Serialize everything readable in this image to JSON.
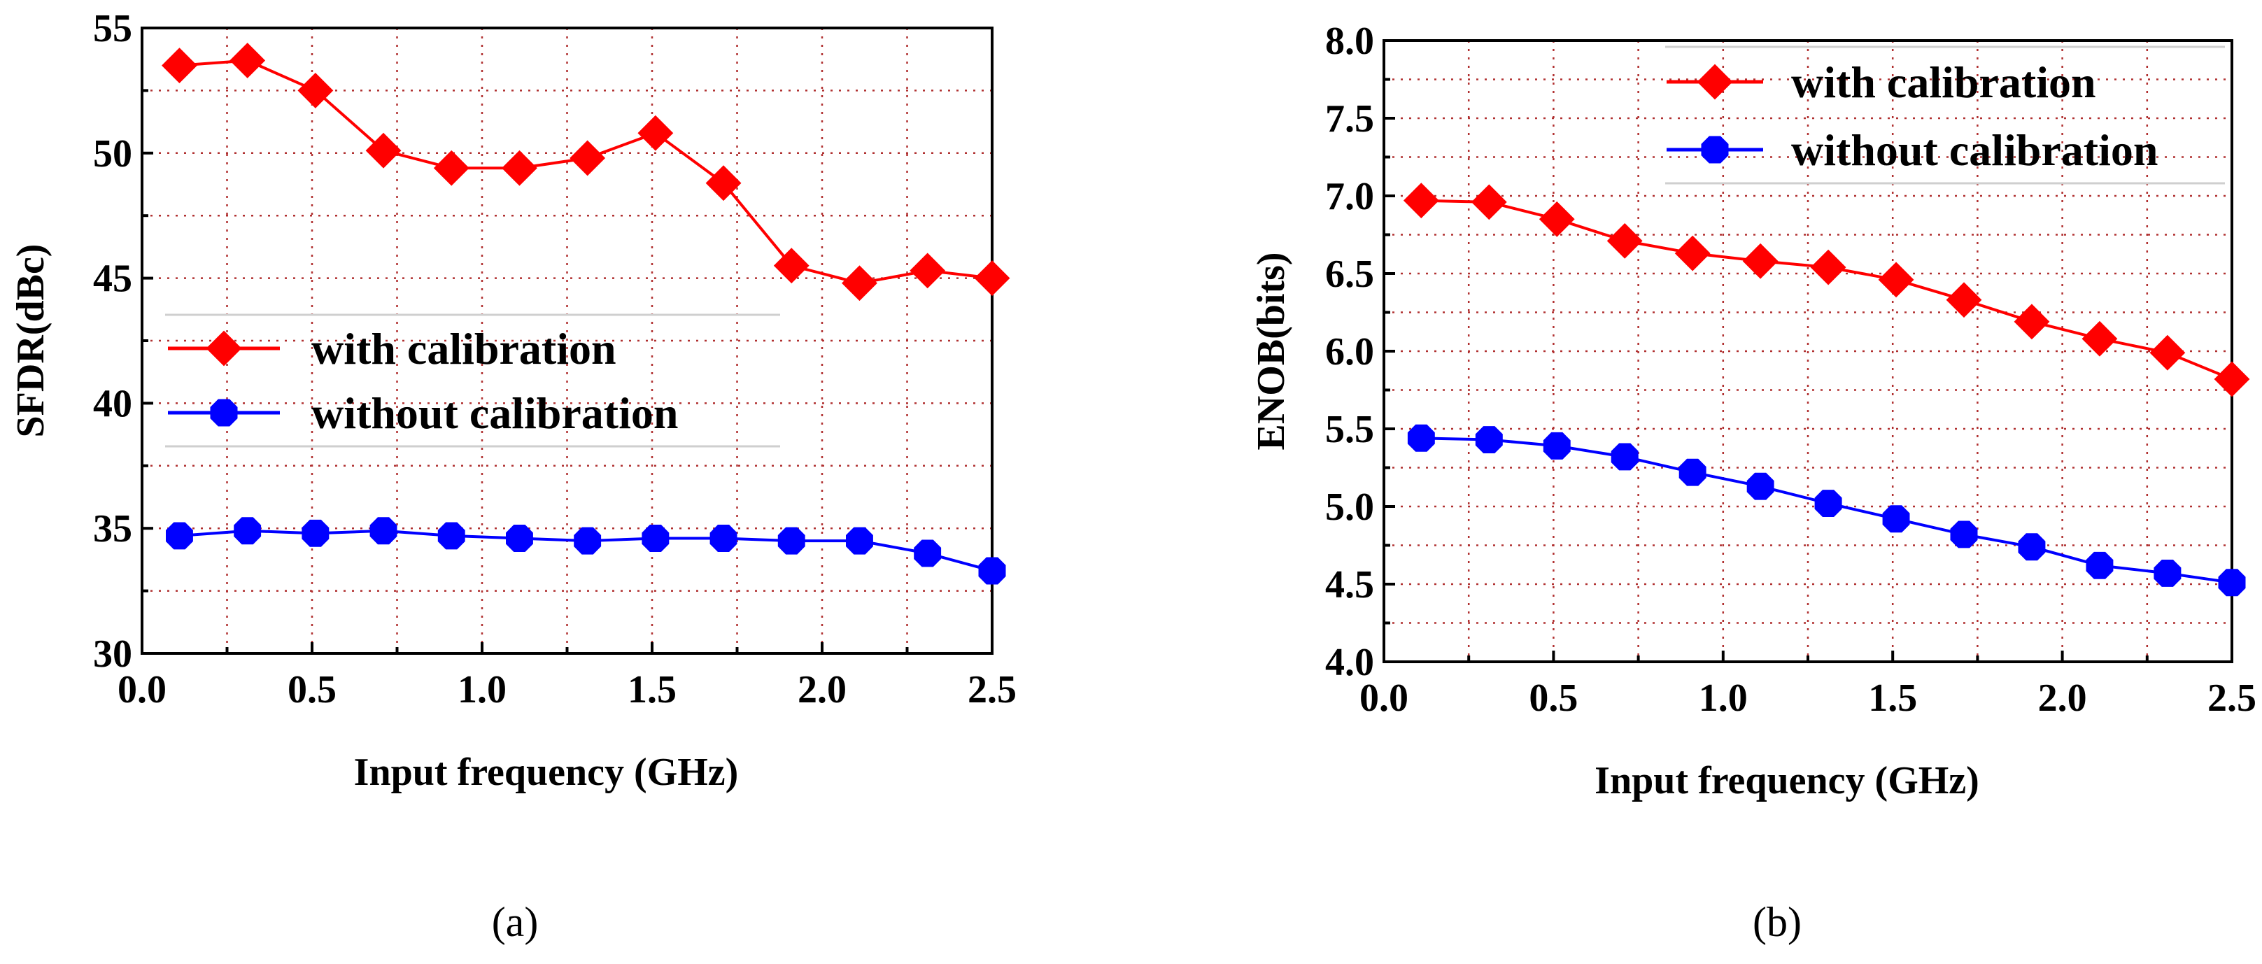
{
  "chart_data": [
    {
      "type": "line",
      "panel": "(a)",
      "xlabel": "Input frequency (GHz)",
      "ylabel": "SFDR(dBc)",
      "xlim": [
        0.0,
        2.5
      ],
      "ylim": [
        30,
        55
      ],
      "xticks": [
        "0.0",
        "0.5",
        "1.0",
        "1.5",
        "2.0",
        "2.5"
      ],
      "yticks": [
        "30",
        "35",
        "40",
        "45",
        "50",
        "55"
      ],
      "x": [
        0.11,
        0.31,
        0.51,
        0.71,
        0.91,
        1.11,
        1.31,
        1.51,
        1.71,
        1.91,
        2.11,
        2.31,
        2.5
      ],
      "legend_position": "middle-left",
      "series": [
        {
          "name": "with calibration",
          "color": "#ff0000",
          "marker": "diamond",
          "values": [
            53.5,
            53.7,
            52.5,
            50.1,
            49.4,
            49.4,
            49.8,
            50.8,
            48.8,
            45.5,
            44.8,
            45.3,
            45.0
          ]
        },
        {
          "name": "without calibration",
          "color": "#0000ff",
          "marker": "octagon",
          "values": [
            34.7,
            34.9,
            34.8,
            34.9,
            34.7,
            34.6,
            34.5,
            34.6,
            34.6,
            34.5,
            34.5,
            34.0,
            33.3
          ]
        }
      ]
    },
    {
      "type": "line",
      "panel": "(b)",
      "xlabel": "Input frequency (GHz)",
      "ylabel": "ENOB(bits)",
      "xlim": [
        0.0,
        2.5
      ],
      "ylim": [
        4.0,
        8.0
      ],
      "xticks": [
        "0.0",
        "0.5",
        "1.0",
        "1.5",
        "2.0",
        "2.5"
      ],
      "yticks": [
        "4.0",
        "4.5",
        "5.0",
        "5.5",
        "6.0",
        "6.5",
        "7.0",
        "7.5",
        "8.0"
      ],
      "x": [
        0.11,
        0.31,
        0.51,
        0.71,
        0.91,
        1.11,
        1.31,
        1.51,
        1.71,
        1.91,
        2.11,
        2.31,
        2.5
      ],
      "legend_position": "top-right",
      "series": [
        {
          "name": "with calibration",
          "color": "#ff0000",
          "marker": "diamond",
          "values": [
            6.97,
            6.96,
            6.85,
            6.71,
            6.63,
            6.58,
            6.54,
            6.46,
            6.33,
            6.19,
            6.08,
            5.99,
            5.82
          ]
        },
        {
          "name": "without calibration",
          "color": "#0000ff",
          "marker": "octagon",
          "values": [
            5.44,
            5.43,
            5.39,
            5.32,
            5.22,
            5.13,
            5.02,
            4.92,
            4.82,
            4.74,
            4.62,
            4.57,
            4.51
          ]
        }
      ]
    }
  ]
}
